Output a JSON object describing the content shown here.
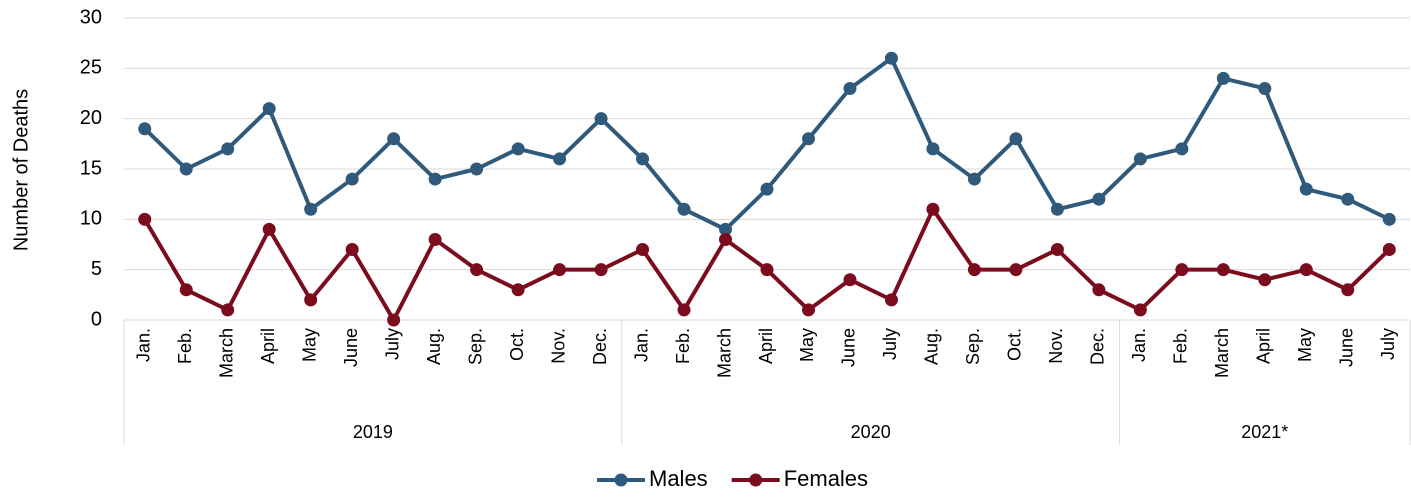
{
  "chart_data": {
    "type": "line",
    "y_label": "Number of Deaths",
    "groups": [
      {
        "label": "2019",
        "categories": [
          "Jan.",
          "Feb.",
          "March",
          "April",
          "May",
          "June",
          "July",
          "Aug.",
          "Sep.",
          "Oct.",
          "Nov.",
          "Dec."
        ]
      },
      {
        "label": "2020",
        "categories": [
          "Jan.",
          "Feb.",
          "March",
          "April",
          "May",
          "June",
          "July",
          "Aug.",
          "Sep.",
          "Oct.",
          "Nov.",
          "Dec."
        ]
      },
      {
        "label": "2021*",
        "categories": [
          "Jan.",
          "Feb.",
          "March",
          "April",
          "May",
          "June",
          "July"
        ]
      }
    ],
    "series": [
      {
        "name": "Males",
        "color": "#305a7c",
        "values": [
          19,
          15,
          17,
          21,
          11,
          14,
          18,
          14,
          15,
          17,
          16,
          20,
          16,
          11,
          9,
          13,
          18,
          23,
          26,
          17,
          14,
          18,
          11,
          12,
          16,
          17,
          24,
          23,
          13,
          12,
          10
        ]
      },
      {
        "name": "Females",
        "color": "#7a0c1e",
        "values": [
          10,
          3,
          1,
          9,
          2,
          7,
          0,
          8,
          5,
          3,
          5,
          5,
          7,
          1,
          8,
          5,
          1,
          4,
          2,
          11,
          5,
          5,
          7,
          3,
          1,
          5,
          5,
          4,
          5,
          3,
          7
        ]
      }
    ],
    "ylim": [
      0,
      30
    ],
    "yticks": [
      0,
      5,
      10,
      15,
      20,
      25,
      30
    ],
    "grid": true,
    "legend": "bottom"
  }
}
